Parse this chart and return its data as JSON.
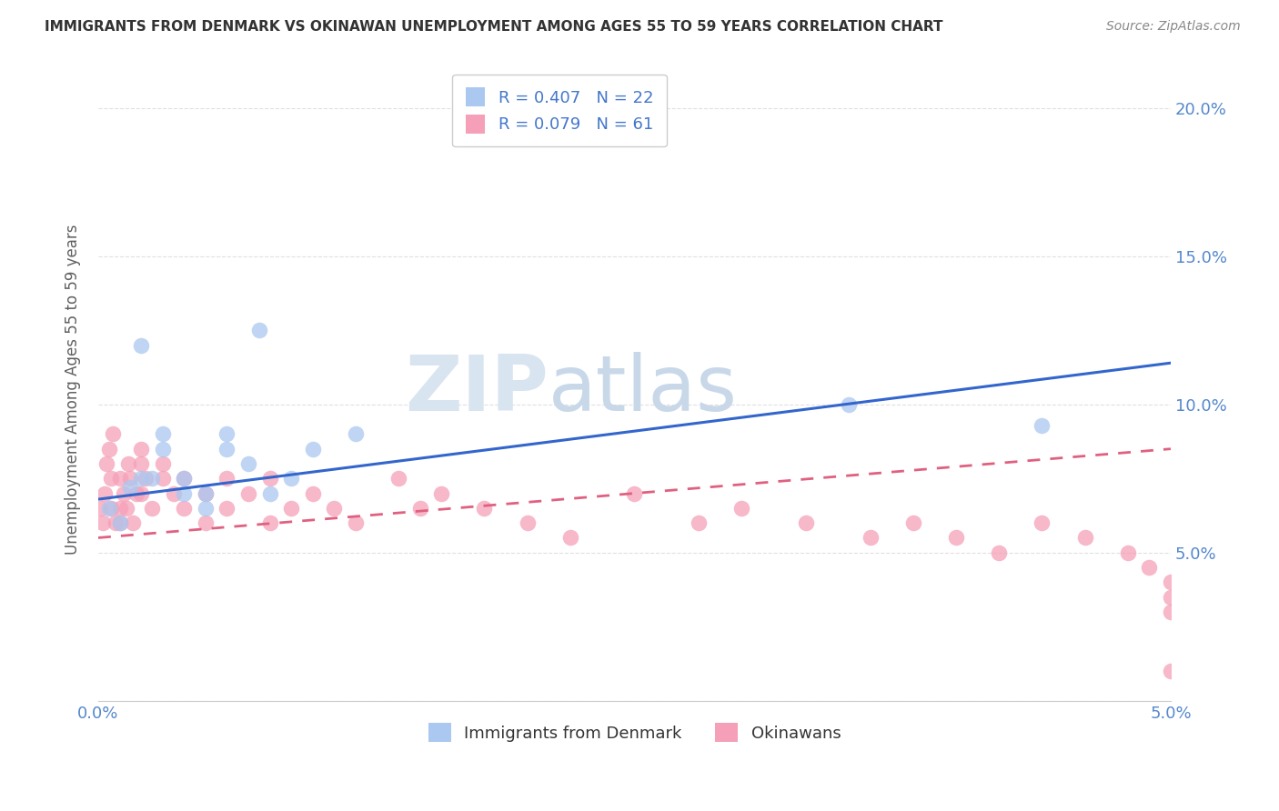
{
  "title": "IMMIGRANTS FROM DENMARK VS OKINAWAN UNEMPLOYMENT AMONG AGES 55 TO 59 YEARS CORRELATION CHART",
  "source": "Source: ZipAtlas.com",
  "ylabel": "Unemployment Among Ages 55 to 59 years",
  "xlim": [
    0.0,
    0.05
  ],
  "ylim": [
    0.0,
    0.21
  ],
  "x_tick_labels": [
    "0.0%",
    "5.0%"
  ],
  "x_tick_vals": [
    0.0,
    0.05
  ],
  "y_tick_vals": [
    0.0,
    0.05,
    0.1,
    0.15,
    0.2
  ],
  "y_tick_labels": [
    "",
    "5.0%",
    "10.0%",
    "15.0%",
    "20.0%"
  ],
  "denmark_R": 0.407,
  "denmark_N": 22,
  "okinawa_R": 0.079,
  "okinawa_N": 61,
  "denmark_color": "#aac8f0",
  "okinawa_color": "#f5a0b8",
  "denmark_line_color": "#3366cc",
  "okinawa_line_color": "#e06080",
  "watermark_zip": "ZIP",
  "watermark_atlas": "atlas",
  "legend_labels": [
    "Immigrants from Denmark",
    "Okinawans"
  ],
  "dk_line_x0": 0.0,
  "dk_line_y0": 0.068,
  "dk_line_x1": 0.05,
  "dk_line_y1": 0.114,
  "ok_line_x0": 0.0,
  "ok_line_y0": 0.055,
  "ok_line_x1": 0.05,
  "ok_line_y1": 0.085,
  "denmark_x": [
    0.0005,
    0.001,
    0.0015,
    0.002,
    0.002,
    0.0025,
    0.003,
    0.003,
    0.004,
    0.004,
    0.005,
    0.005,
    0.006,
    0.006,
    0.007,
    0.0075,
    0.008,
    0.009,
    0.01,
    0.012,
    0.035,
    0.044
  ],
  "denmark_y": [
    0.065,
    0.06,
    0.072,
    0.075,
    0.12,
    0.075,
    0.085,
    0.09,
    0.07,
    0.075,
    0.065,
    0.07,
    0.085,
    0.09,
    0.08,
    0.125,
    0.07,
    0.075,
    0.085,
    0.09,
    0.1,
    0.093
  ],
  "okinawa_x": [
    0.0001,
    0.0002,
    0.0003,
    0.0004,
    0.0005,
    0.0006,
    0.0006,
    0.0007,
    0.0008,
    0.001,
    0.001,
    0.001,
    0.0012,
    0.0013,
    0.0014,
    0.0015,
    0.0016,
    0.0018,
    0.002,
    0.002,
    0.002,
    0.0022,
    0.0025,
    0.003,
    0.003,
    0.0035,
    0.004,
    0.004,
    0.005,
    0.005,
    0.006,
    0.006,
    0.007,
    0.008,
    0.008,
    0.009,
    0.01,
    0.011,
    0.012,
    0.014,
    0.015,
    0.016,
    0.018,
    0.02,
    0.022,
    0.025,
    0.028,
    0.03,
    0.033,
    0.036,
    0.038,
    0.04,
    0.042,
    0.044,
    0.046,
    0.048,
    0.049,
    0.05,
    0.05,
    0.05,
    0.05
  ],
  "okinawa_y": [
    0.065,
    0.06,
    0.07,
    0.08,
    0.085,
    0.065,
    0.075,
    0.09,
    0.06,
    0.06,
    0.065,
    0.075,
    0.07,
    0.065,
    0.08,
    0.075,
    0.06,
    0.07,
    0.07,
    0.08,
    0.085,
    0.075,
    0.065,
    0.075,
    0.08,
    0.07,
    0.065,
    0.075,
    0.06,
    0.07,
    0.065,
    0.075,
    0.07,
    0.06,
    0.075,
    0.065,
    0.07,
    0.065,
    0.06,
    0.075,
    0.065,
    0.07,
    0.065,
    0.06,
    0.055,
    0.07,
    0.06,
    0.065,
    0.06,
    0.055,
    0.06,
    0.055,
    0.05,
    0.06,
    0.055,
    0.05,
    0.045,
    0.04,
    0.035,
    0.03,
    0.01
  ],
  "background_color": "#ffffff",
  "grid_color": "#e0e0e0"
}
